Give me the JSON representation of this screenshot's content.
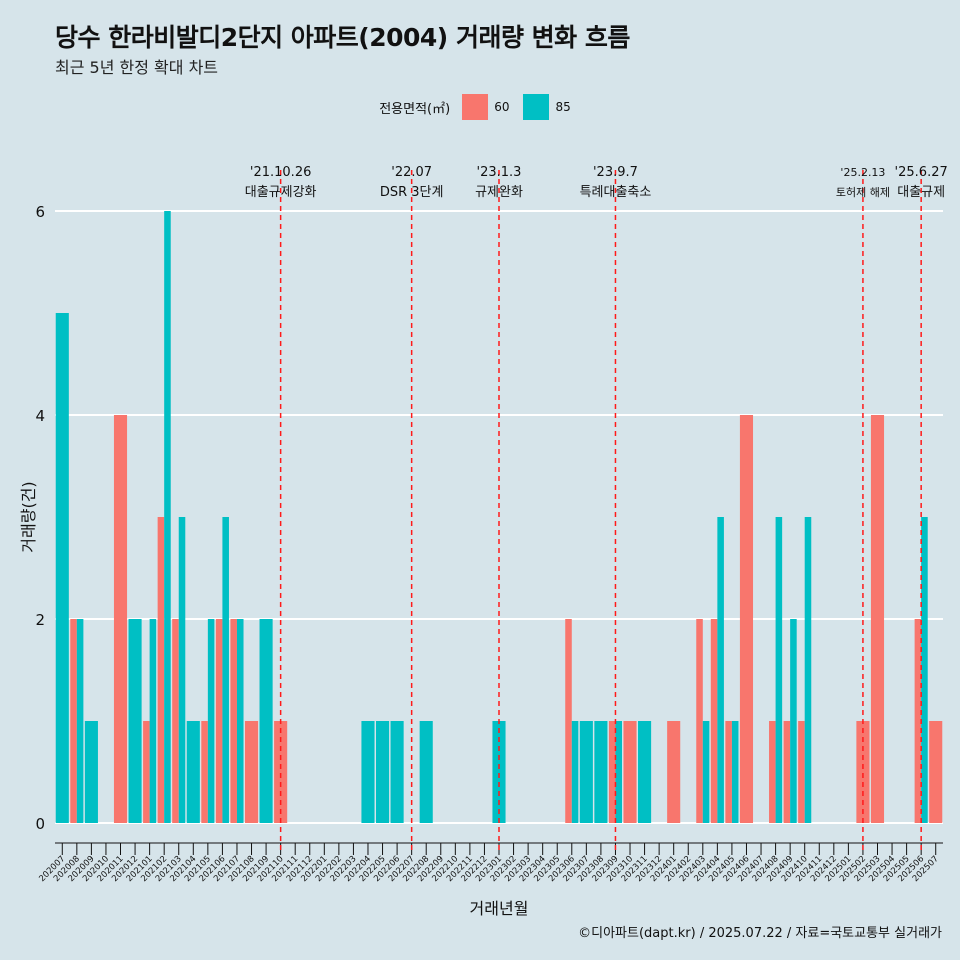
{
  "title": "당수 한라비발디2단지 아파트(2004) 거래량 변화 흐름",
  "subtitle": "최근 5년 한정 확대 차트",
  "caption": "©디아파트(dapt.kr) / 2025.07.22 / 자료=국토교통부 실거래가",
  "legend": {
    "title": "전용면적(㎡)",
    "items": [
      {
        "label": "60",
        "color": "#f8766d"
      },
      {
        "label": "85",
        "color": "#00bfc4"
      }
    ]
  },
  "chart_data": {
    "type": "bar",
    "xlabel": "거래년월",
    "ylabel": "거래량(건)",
    "ylim": [
      0,
      6
    ],
    "yticks": [
      0,
      2,
      4,
      6
    ],
    "categories": [
      "202007",
      "202008",
      "202009",
      "202010",
      "202011",
      "202012",
      "202101",
      "202102",
      "202103",
      "202104",
      "202105",
      "202106",
      "202107",
      "202108",
      "202109",
      "202110",
      "202111",
      "202112",
      "202201",
      "202202",
      "202203",
      "202204",
      "202205",
      "202206",
      "202207",
      "202208",
      "202209",
      "202210",
      "202211",
      "202212",
      "202301",
      "202302",
      "202303",
      "202304",
      "202305",
      "202306",
      "202307",
      "202308",
      "202309",
      "202310",
      "202311",
      "202312",
      "202401",
      "202402",
      "202403",
      "202404",
      "202405",
      "202406",
      "202407",
      "202408",
      "202409",
      "202410",
      "202411",
      "202412",
      "202501",
      "202502",
      "202503",
      "202504",
      "202505",
      "202506",
      "202507"
    ],
    "series": [
      {
        "name": "60",
        "color": "#f8766d",
        "values": [
          0,
          2,
          0,
          0,
          4,
          0,
          1,
          3,
          2,
          0,
          1,
          2,
          2,
          1,
          0,
          1,
          0,
          0,
          0,
          0,
          0,
          0,
          0,
          0,
          0,
          0,
          0,
          0,
          0,
          0,
          0,
          0,
          0,
          0,
          0,
          2,
          0,
          0,
          1,
          1,
          0,
          0,
          1,
          0,
          2,
          2,
          1,
          4,
          0,
          1,
          1,
          1,
          0,
          0,
          0,
          1,
          4,
          0,
          0,
          2,
          1
        ]
      },
      {
        "name": "85",
        "color": "#00bfc4",
        "values": [
          5,
          2,
          1,
          0,
          0,
          2,
          2,
          6,
          3,
          1,
          2,
          3,
          2,
          0,
          2,
          0,
          0,
          0,
          0,
          0,
          0,
          1,
          1,
          1,
          0,
          1,
          0,
          0,
          0,
          0,
          1,
          0,
          0,
          0,
          0,
          1,
          1,
          1,
          1,
          0,
          1,
          0,
          0,
          0,
          1,
          3,
          1,
          0,
          0,
          3,
          2,
          3,
          0,
          0,
          0,
          0,
          0,
          0,
          0,
          3,
          0
        ]
      }
    ],
    "annotations": [
      {
        "category": "202110",
        "date": "'21.10.26",
        "label": "대출규제강화"
      },
      {
        "category": "202207",
        "date": "'22.07",
        "label": "DSR 3단계"
      },
      {
        "category": "202301",
        "date": "'23.1.3",
        "label": "규제완화"
      },
      {
        "category": "202309",
        "date": "'23.9.7",
        "label": "특례대출축소"
      },
      {
        "category": "202502",
        "date": "'25.2.13",
        "label": "토허제 해제"
      },
      {
        "category": "202506",
        "date": "'25.6.27",
        "label": "대출규제"
      }
    ]
  }
}
